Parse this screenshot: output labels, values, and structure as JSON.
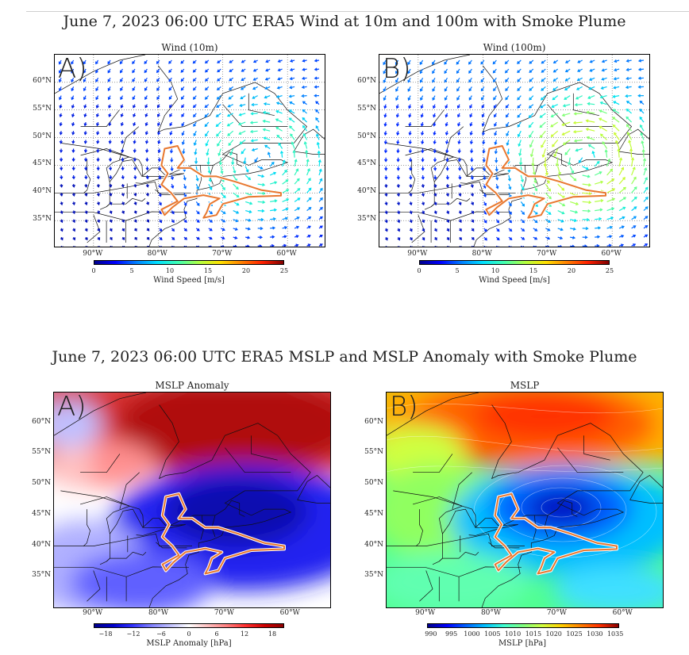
{
  "wind_row": {
    "title": "June 7, 2023 06:00 UTC ERA5 Wind at 10m and 100m with Smoke Plume",
    "panels": [
      {
        "letter": "A)",
        "subtitle": "Wind (10m)"
      },
      {
        "letter": "B)",
        "subtitle": "Wind (100m)"
      }
    ],
    "colorbar": {
      "label": "Wind Speed [m/s]",
      "ticks": [
        "0",
        "5",
        "10",
        "15",
        "20",
        "25"
      ],
      "colors": [
        "#00008b",
        "#0000ff",
        "#0080ff",
        "#00e0ff",
        "#40ffb0",
        "#b0ff40",
        "#ffe000",
        "#ff8000",
        "#ff2000",
        "#800000"
      ]
    }
  },
  "mslp_row": {
    "title": "June 7, 2023 06:00 UTC ERA5 MSLP and MSLP Anomaly with Smoke Plume",
    "panels": [
      {
        "letter": "A)",
        "subtitle": "MSLP Anomaly"
      },
      {
        "letter": "B)",
        "subtitle": "MSLP"
      }
    ],
    "colorbar_anomaly": {
      "label": "MSLP Anomaly [hPa]",
      "ticks": [
        "−18",
        "−12",
        "−6",
        "0",
        "6",
        "12",
        "18"
      ],
      "colors": [
        "#00008b",
        "#0000cd",
        "#3030ff",
        "#8080ff",
        "#c0c0ff",
        "#ffffff",
        "#ffc0c0",
        "#ff8080",
        "#ff3030",
        "#cd0000",
        "#8b0000"
      ]
    },
    "colorbar_mslp": {
      "label": "MSLP [hPa]",
      "ticks": [
        "990",
        "995",
        "1000",
        "1005",
        "1010",
        "1015",
        "1020",
        "1025",
        "1030",
        "1035"
      ],
      "colors": [
        "#00008b",
        "#0000ff",
        "#0060ff",
        "#00c0ff",
        "#40ffd0",
        "#80ff80",
        "#d0ff40",
        "#ffd000",
        "#ff8000",
        "#ff3000",
        "#8b0000"
      ]
    }
  },
  "lat_labels": [
    "60°N",
    "55°N",
    "50°N",
    "45°N",
    "40°N",
    "35°N"
  ],
  "lon_labels": [
    "90°W",
    "80°W",
    "70°W",
    "60°W"
  ],
  "plume_color": "#e87830"
}
